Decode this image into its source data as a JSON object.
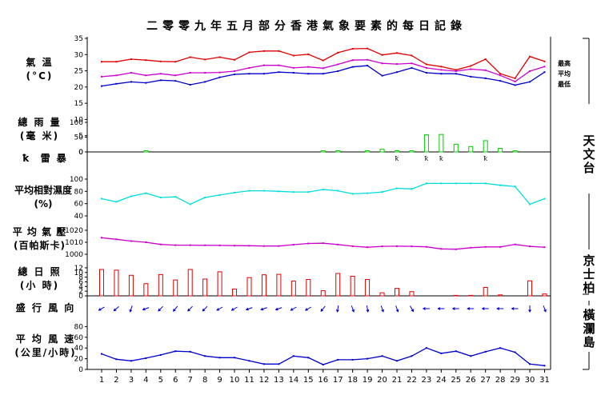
{
  "title": "二零零九年五月部分香港氣象要素的每日記錄",
  "labels": {
    "temperature": [
      "氣 溫",
      "(°C)"
    ],
    "rainfall": [
      "總 雨 量",
      "(毫 米)"
    ],
    "thunder": "雷 暴",
    "humidity": [
      "平均相對濕度",
      "(%)"
    ],
    "pressure": [
      "平 均 氣 壓",
      "(百帕斯卡)"
    ],
    "sunshine": [
      "總 日 照",
      "(小 時)"
    ],
    "wind_direction": "盛 行 風 向",
    "wind_speed": [
      "平 均 風 速",
      "(公里/小時)"
    ]
  },
  "stations": {
    "observatory": [
      "天",
      "文",
      "台"
    ],
    "kings_park": [
      "京",
      "士",
      "柏"
    ],
    "waglan": [
      "橫",
      "瀾",
      "島"
    ]
  },
  "temperature_legend": [
    "最高",
    "平均",
    "最低"
  ],
  "thunder_symbol": "ꝁ",
  "colors": {
    "axis": "#000000",
    "tmax": "#e00000",
    "tmean": "#cc00cc",
    "tmin": "#0000cc",
    "rain": "#00cc00",
    "humidity": "#00dddd",
    "pressure": "#cc00cc",
    "sunshine": "#e00000",
    "wind": "#0000cc"
  },
  "chart_data": [
    {
      "type": "line",
      "name": "temperature",
      "x": [
        1,
        2,
        3,
        4,
        5,
        6,
        7,
        8,
        9,
        10,
        11,
        12,
        13,
        14,
        15,
        16,
        17,
        18,
        19,
        20,
        21,
        22,
        23,
        24,
        25,
        26,
        27,
        28,
        29,
        30,
        31
      ],
      "series": [
        {
          "name": "最高",
          "values": [
            27.8,
            27.8,
            28.6,
            28.3,
            27.9,
            27.8,
            29.2,
            28.5,
            29.2,
            28.4,
            30.7,
            31.1,
            31.1,
            29.7,
            30.1,
            28.2,
            30.6,
            31.8,
            31.9,
            29.9,
            30.5,
            29.7,
            27,
            26.3,
            25.3,
            26.5,
            28.6,
            24.1,
            22.7,
            29.4,
            27.9
          ]
        },
        {
          "name": "平均",
          "values": [
            23.2,
            23.6,
            24.4,
            23.6,
            24.1,
            23.6,
            24.4,
            24.4,
            24.5,
            24.9,
            25.9,
            26.7,
            26.7,
            25.9,
            26.2,
            25.8,
            27,
            28.3,
            28.4,
            27.3,
            27.1,
            27.3,
            25.9,
            25.3,
            24.9,
            25.5,
            25.2,
            23.6,
            21.7,
            24.9,
            26.3
          ]
        },
        {
          "name": "最低",
          "values": [
            20.3,
            21,
            21.6,
            21.3,
            22.1,
            21.9,
            20.7,
            21.6,
            23,
            23.9,
            24.1,
            24.1,
            24.6,
            24.4,
            24.1,
            24.1,
            24.9,
            26.2,
            26.6,
            23.5,
            24.6,
            25.9,
            24.4,
            24.1,
            24.1,
            23.2,
            22.7,
            21.9,
            20.6,
            21.6,
            24.6
          ]
        }
      ],
      "yticks": [
        0,
        5,
        10,
        15,
        20,
        25,
        30,
        35
      ],
      "ylim": [
        0,
        35
      ]
    },
    {
      "type": "bar",
      "name": "rainfall",
      "x": [
        1,
        2,
        3,
        4,
        5,
        6,
        7,
        8,
        9,
        10,
        11,
        12,
        13,
        14,
        15,
        16,
        17,
        18,
        19,
        20,
        21,
        22,
        23,
        24,
        25,
        26,
        27,
        28,
        29,
        30,
        31
      ],
      "values": [
        0,
        0,
        0,
        1,
        0,
        0,
        0,
        0,
        0,
        0,
        0,
        0,
        0,
        0,
        0,
        0.5,
        0.5,
        0,
        0.5,
        9,
        0.3,
        1,
        58,
        59,
        26,
        18,
        38,
        12,
        4,
        0,
        0
      ],
      "yticks": [
        0,
        50,
        100
      ],
      "ylim": [
        0,
        100
      ]
    },
    {
      "type": "scatter",
      "name": "thunder",
      "days": [
        21,
        23,
        24,
        27
      ]
    },
    {
      "type": "line",
      "name": "humidity",
      "x": [
        1,
        2,
        3,
        4,
        5,
        6,
        7,
        8,
        9,
        10,
        11,
        12,
        13,
        14,
        15,
        16,
        17,
        18,
        19,
        20,
        21,
        22,
        23,
        24,
        25,
        26,
        27,
        28,
        29,
        30,
        31
      ],
      "values": [
        68,
        63,
        72,
        77,
        70,
        71,
        59,
        70,
        74,
        78,
        81,
        81,
        80,
        79,
        79,
        83,
        81,
        76,
        77,
        79,
        85,
        84,
        93,
        93,
        93,
        93,
        93,
        90,
        88,
        59,
        68
      ],
      "yticks": [
        40,
        60,
        80,
        100
      ],
      "ylim": [
        40,
        100
      ]
    },
    {
      "type": "line",
      "name": "pressure",
      "x": [
        1,
        2,
        3,
        4,
        5,
        6,
        7,
        8,
        9,
        10,
        11,
        12,
        13,
        14,
        15,
        16,
        17,
        18,
        19,
        20,
        21,
        22,
        23,
        24,
        25,
        26,
        27,
        28,
        29,
        30,
        31
      ],
      "values": [
        1013.8,
        1012.5,
        1011,
        1010,
        1008.2,
        1007.6,
        1007.6,
        1007.5,
        1007.4,
        1007.2,
        1007.1,
        1006.9,
        1006.9,
        1008,
        1009,
        1009.2,
        1008.1,
        1006.7,
        1005.9,
        1006.6,
        1006.7,
        1006.6,
        1006.2,
        1004.5,
        1004.2,
        1005.5,
        1006.1,
        1006.1,
        1008.2,
        1006.6,
        1005.9
      ],
      "yticks": [
        1000,
        1010,
        1020
      ],
      "ylim": [
        1000,
        1020
      ]
    },
    {
      "type": "bar",
      "name": "sunshine",
      "x": [
        1,
        2,
        3,
        4,
        5,
        6,
        7,
        8,
        9,
        10,
        11,
        12,
        13,
        14,
        15,
        16,
        17,
        18,
        19,
        20,
        21,
        22,
        23,
        24,
        25,
        26,
        27,
        28,
        29,
        30,
        31
      ],
      "values": [
        11.3,
        11,
        8.8,
        5.2,
        9.1,
        6.8,
        11.3,
        7.2,
        10.3,
        2.9,
        7.8,
        9,
        9.2,
        6.3,
        7,
        2.2,
        9.6,
        8.4,
        7,
        1.3,
        3.2,
        1.8,
        0,
        0,
        0.2,
        0.2,
        3.6,
        0.4,
        0,
        6.4,
        0.8
      ],
      "yticks": [
        0,
        2,
        4,
        6,
        8,
        10,
        12
      ],
      "ylim": [
        0,
        13
      ]
    },
    {
      "type": "scatter",
      "name": "wind_direction",
      "x": [
        1,
        2,
        3,
        4,
        5,
        6,
        7,
        8,
        9,
        10,
        11,
        12,
        13,
        14,
        15,
        16,
        17,
        18,
        19,
        20,
        21,
        22,
        23,
        24,
        25,
        26,
        27,
        28,
        29,
        30,
        31
      ],
      "bearing_deg": [
        60,
        50,
        20,
        70,
        45,
        40,
        45,
        45,
        60,
        60,
        70,
        70,
        70,
        60,
        60,
        40,
        10,
        340,
        350,
        340,
        340,
        330,
        90,
        90,
        90,
        90,
        90,
        90,
        90,
        0,
        340
      ]
    },
    {
      "type": "line",
      "name": "wind_speed",
      "x": [
        1,
        2,
        3,
        4,
        5,
        6,
        7,
        8,
        9,
        10,
        11,
        12,
        13,
        14,
        15,
        16,
        17,
        18,
        19,
        20,
        21,
        22,
        23,
        24,
        25,
        26,
        27,
        28,
        29,
        30,
        31
      ],
      "values": [
        29,
        19,
        16,
        21,
        27,
        34,
        33,
        25,
        22,
        22,
        16,
        10,
        10,
        25,
        22,
        9,
        18,
        18,
        20,
        25,
        16,
        25,
        40,
        30,
        34,
        25,
        33,
        40,
        32,
        10,
        7
      ],
      "yticks": [
        0,
        20,
        40,
        60,
        80
      ],
      "ylim": [
        0,
        100
      ]
    }
  ]
}
